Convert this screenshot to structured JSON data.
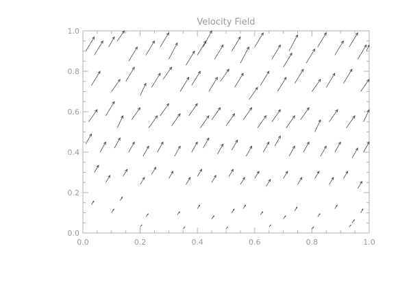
{
  "chart_data": {
    "type": "vector_field",
    "title": "Velocity Field",
    "xlabel": "",
    "ylabel": "",
    "xlim": [
      0.0,
      1.0
    ],
    "ylim": [
      0.0,
      1.0
    ],
    "x_ticks": [
      "0.0",
      "0.2",
      "0.4",
      "0.6",
      "0.8",
      "1.0"
    ],
    "y_ticks": [
      "0.0",
      "0.2",
      "0.4",
      "0.6",
      "0.8",
      "1.0"
    ],
    "grid": false,
    "colors": {
      "axes": "#b0b0b0",
      "text": "#9a9a9a",
      "arrows": "#444444"
    },
    "vectors": [
      {
        "x": 0.01,
        "y": 0.9,
        "u": 0.03,
        "v": 0.07
      },
      {
        "x": 0.04,
        "y": 0.88,
        "u": 0.03,
        "v": 0.07
      },
      {
        "x": 0.09,
        "y": 0.92,
        "u": 0.02,
        "v": 0.05
      },
      {
        "x": 0.12,
        "y": 0.95,
        "u": 0.03,
        "v": 0.06
      },
      {
        "x": 0.16,
        "y": 0.85,
        "u": 0.03,
        "v": 0.07
      },
      {
        "x": 0.22,
        "y": 0.88,
        "u": 0.03,
        "v": 0.07
      },
      {
        "x": 0.27,
        "y": 0.92,
        "u": 0.03,
        "v": 0.07
      },
      {
        "x": 0.3,
        "y": 0.86,
        "u": 0.03,
        "v": 0.08
      },
      {
        "x": 0.36,
        "y": 0.83,
        "u": 0.03,
        "v": 0.07
      },
      {
        "x": 0.4,
        "y": 0.88,
        "u": 0.03,
        "v": 0.07
      },
      {
        "x": 0.42,
        "y": 0.92,
        "u": 0.03,
        "v": 0.08
      },
      {
        "x": 0.46,
        "y": 0.86,
        "u": 0.03,
        "v": 0.07
      },
      {
        "x": 0.52,
        "y": 0.9,
        "u": 0.03,
        "v": 0.07
      },
      {
        "x": 0.55,
        "y": 0.84,
        "u": 0.03,
        "v": 0.08
      },
      {
        "x": 0.6,
        "y": 0.92,
        "u": 0.03,
        "v": 0.07
      },
      {
        "x": 0.66,
        "y": 0.86,
        "u": 0.03,
        "v": 0.07
      },
      {
        "x": 0.7,
        "y": 0.82,
        "u": 0.03,
        "v": 0.07
      },
      {
        "x": 0.72,
        "y": 0.9,
        "u": 0.03,
        "v": 0.08
      },
      {
        "x": 0.78,
        "y": 0.84,
        "u": 0.03,
        "v": 0.07
      },
      {
        "x": 0.82,
        "y": 0.92,
        "u": 0.03,
        "v": 0.07
      },
      {
        "x": 0.88,
        "y": 0.88,
        "u": 0.03,
        "v": 0.07
      },
      {
        "x": 0.93,
        "y": 0.92,
        "u": 0.03,
        "v": 0.07
      },
      {
        "x": 0.96,
        "y": 0.86,
        "u": 0.03,
        "v": 0.07
      },
      {
        "x": 0.99,
        "y": 0.9,
        "u": 0.02,
        "v": 0.06
      },
      {
        "x": 0.03,
        "y": 0.73,
        "u": 0.03,
        "v": 0.07
      },
      {
        "x": 0.1,
        "y": 0.7,
        "u": 0.03,
        "v": 0.06
      },
      {
        "x": 0.15,
        "y": 0.75,
        "u": 0.03,
        "v": 0.07
      },
      {
        "x": 0.2,
        "y": 0.68,
        "u": 0.02,
        "v": 0.06
      },
      {
        "x": 0.24,
        "y": 0.72,
        "u": 0.03,
        "v": 0.07
      },
      {
        "x": 0.28,
        "y": 0.76,
        "u": 0.03,
        "v": 0.06
      },
      {
        "x": 0.34,
        "y": 0.7,
        "u": 0.03,
        "v": 0.07
      },
      {
        "x": 0.38,
        "y": 0.73,
        "u": 0.03,
        "v": 0.07
      },
      {
        "x": 0.44,
        "y": 0.7,
        "u": 0.03,
        "v": 0.07
      },
      {
        "x": 0.48,
        "y": 0.75,
        "u": 0.03,
        "v": 0.06
      },
      {
        "x": 0.53,
        "y": 0.72,
        "u": 0.03,
        "v": 0.07
      },
      {
        "x": 0.58,
        "y": 0.66,
        "u": 0.03,
        "v": 0.06
      },
      {
        "x": 0.62,
        "y": 0.73,
        "u": 0.03,
        "v": 0.07
      },
      {
        "x": 0.68,
        "y": 0.7,
        "u": 0.03,
        "v": 0.07
      },
      {
        "x": 0.74,
        "y": 0.74,
        "u": 0.03,
        "v": 0.07
      },
      {
        "x": 0.8,
        "y": 0.7,
        "u": 0.03,
        "v": 0.06
      },
      {
        "x": 0.85,
        "y": 0.72,
        "u": 0.03,
        "v": 0.07
      },
      {
        "x": 0.91,
        "y": 0.74,
        "u": 0.03,
        "v": 0.07
      },
      {
        "x": 0.97,
        "y": 0.7,
        "u": 0.03,
        "v": 0.06
      },
      {
        "x": 0.02,
        "y": 0.55,
        "u": 0.03,
        "v": 0.06
      },
      {
        "x": 0.08,
        "y": 0.58,
        "u": 0.03,
        "v": 0.07
      },
      {
        "x": 0.12,
        "y": 0.52,
        "u": 0.02,
        "v": 0.06
      },
      {
        "x": 0.17,
        "y": 0.56,
        "u": 0.03,
        "v": 0.06
      },
      {
        "x": 0.23,
        "y": 0.52,
        "u": 0.03,
        "v": 0.06
      },
      {
        "x": 0.27,
        "y": 0.58,
        "u": 0.03,
        "v": 0.06
      },
      {
        "x": 0.31,
        "y": 0.53,
        "u": 0.03,
        "v": 0.06
      },
      {
        "x": 0.37,
        "y": 0.58,
        "u": 0.03,
        "v": 0.06
      },
      {
        "x": 0.41,
        "y": 0.52,
        "u": 0.03,
        "v": 0.06
      },
      {
        "x": 0.45,
        "y": 0.56,
        "u": 0.03,
        "v": 0.06
      },
      {
        "x": 0.5,
        "y": 0.53,
        "u": 0.03,
        "v": 0.06
      },
      {
        "x": 0.56,
        "y": 0.56,
        "u": 0.03,
        "v": 0.06
      },
      {
        "x": 0.61,
        "y": 0.52,
        "u": 0.03,
        "v": 0.06
      },
      {
        "x": 0.66,
        "y": 0.55,
        "u": 0.03,
        "v": 0.06
      },
      {
        "x": 0.71,
        "y": 0.52,
        "u": 0.03,
        "v": 0.06
      },
      {
        "x": 0.76,
        "y": 0.56,
        "u": 0.03,
        "v": 0.06
      },
      {
        "x": 0.81,
        "y": 0.5,
        "u": 0.02,
        "v": 0.06
      },
      {
        "x": 0.86,
        "y": 0.55,
        "u": 0.03,
        "v": 0.06
      },
      {
        "x": 0.92,
        "y": 0.52,
        "u": 0.03,
        "v": 0.06
      },
      {
        "x": 0.98,
        "y": 0.55,
        "u": 0.02,
        "v": 0.06
      },
      {
        "x": 0.01,
        "y": 0.44,
        "u": 0.02,
        "v": 0.05
      },
      {
        "x": 0.06,
        "y": 0.4,
        "u": 0.02,
        "v": 0.05
      },
      {
        "x": 0.11,
        "y": 0.42,
        "u": 0.02,
        "v": 0.05
      },
      {
        "x": 0.16,
        "y": 0.4,
        "u": 0.02,
        "v": 0.05
      },
      {
        "x": 0.21,
        "y": 0.38,
        "u": 0.02,
        "v": 0.05
      },
      {
        "x": 0.26,
        "y": 0.4,
        "u": 0.02,
        "v": 0.05
      },
      {
        "x": 0.32,
        "y": 0.38,
        "u": 0.02,
        "v": 0.05
      },
      {
        "x": 0.38,
        "y": 0.4,
        "u": 0.02,
        "v": 0.05
      },
      {
        "x": 0.42,
        "y": 0.42,
        "u": 0.02,
        "v": 0.05
      },
      {
        "x": 0.47,
        "y": 0.39,
        "u": 0.02,
        "v": 0.05
      },
      {
        "x": 0.52,
        "y": 0.41,
        "u": 0.02,
        "v": 0.05
      },
      {
        "x": 0.57,
        "y": 0.38,
        "u": 0.02,
        "v": 0.05
      },
      {
        "x": 0.63,
        "y": 0.4,
        "u": 0.02,
        "v": 0.05
      },
      {
        "x": 0.67,
        "y": 0.43,
        "u": 0.02,
        "v": 0.05
      },
      {
        "x": 0.72,
        "y": 0.38,
        "u": 0.02,
        "v": 0.05
      },
      {
        "x": 0.77,
        "y": 0.4,
        "u": 0.02,
        "v": 0.05
      },
      {
        "x": 0.83,
        "y": 0.38,
        "u": 0.02,
        "v": 0.05
      },
      {
        "x": 0.88,
        "y": 0.4,
        "u": 0.02,
        "v": 0.05
      },
      {
        "x": 0.94,
        "y": 0.37,
        "u": 0.02,
        "v": 0.05
      },
      {
        "x": 0.98,
        "y": 0.4,
        "u": 0.02,
        "v": 0.05
      },
      {
        "x": 0.04,
        "y": 0.3,
        "u": 0.015,
        "v": 0.035
      },
      {
        "x": 0.08,
        "y": 0.25,
        "u": 0.015,
        "v": 0.035
      },
      {
        "x": 0.14,
        "y": 0.28,
        "u": 0.015,
        "v": 0.035
      },
      {
        "x": 0.2,
        "y": 0.24,
        "u": 0.015,
        "v": 0.035
      },
      {
        "x": 0.24,
        "y": 0.29,
        "u": 0.015,
        "v": 0.035
      },
      {
        "x": 0.3,
        "y": 0.27,
        "u": 0.015,
        "v": 0.035
      },
      {
        "x": 0.36,
        "y": 0.24,
        "u": 0.015,
        "v": 0.035
      },
      {
        "x": 0.4,
        "y": 0.28,
        "u": 0.015,
        "v": 0.035
      },
      {
        "x": 0.45,
        "y": 0.25,
        "u": 0.015,
        "v": 0.035
      },
      {
        "x": 0.51,
        "y": 0.28,
        "u": 0.015,
        "v": 0.035
      },
      {
        "x": 0.55,
        "y": 0.24,
        "u": 0.015,
        "v": 0.035
      },
      {
        "x": 0.6,
        "y": 0.27,
        "u": 0.015,
        "v": 0.035
      },
      {
        "x": 0.64,
        "y": 0.23,
        "u": 0.015,
        "v": 0.035
      },
      {
        "x": 0.7,
        "y": 0.27,
        "u": 0.015,
        "v": 0.035
      },
      {
        "x": 0.75,
        "y": 0.24,
        "u": 0.015,
        "v": 0.035
      },
      {
        "x": 0.81,
        "y": 0.27,
        "u": 0.015,
        "v": 0.035
      },
      {
        "x": 0.86,
        "y": 0.24,
        "u": 0.015,
        "v": 0.035
      },
      {
        "x": 0.91,
        "y": 0.27,
        "u": 0.015,
        "v": 0.035
      },
      {
        "x": 0.96,
        "y": 0.22,
        "u": 0.015,
        "v": 0.035
      },
      {
        "x": 0.03,
        "y": 0.14,
        "u": 0.008,
        "v": 0.018
      },
      {
        "x": 0.1,
        "y": 0.1,
        "u": 0.008,
        "v": 0.018
      },
      {
        "x": 0.13,
        "y": 0.16,
        "u": 0.008,
        "v": 0.018
      },
      {
        "x": 0.22,
        "y": 0.08,
        "u": 0.008,
        "v": 0.015
      },
      {
        "x": 0.33,
        "y": 0.09,
        "u": 0.008,
        "v": 0.015
      },
      {
        "x": 0.4,
        "y": 0.12,
        "u": 0.008,
        "v": 0.018
      },
      {
        "x": 0.45,
        "y": 0.07,
        "u": 0.008,
        "v": 0.015
      },
      {
        "x": 0.52,
        "y": 0.1,
        "u": 0.008,
        "v": 0.018
      },
      {
        "x": 0.56,
        "y": 0.12,
        "u": 0.008,
        "v": 0.018
      },
      {
        "x": 0.62,
        "y": 0.09,
        "u": 0.008,
        "v": 0.015
      },
      {
        "x": 0.7,
        "y": 0.07,
        "u": 0.008,
        "v": 0.015
      },
      {
        "x": 0.74,
        "y": 0.11,
        "u": 0.008,
        "v": 0.018
      },
      {
        "x": 0.82,
        "y": 0.08,
        "u": 0.008,
        "v": 0.015
      },
      {
        "x": 0.88,
        "y": 0.12,
        "u": 0.008,
        "v": 0.018
      },
      {
        "x": 0.94,
        "y": 0.05,
        "u": 0.008,
        "v": 0.015
      },
      {
        "x": 0.97,
        "y": 0.1,
        "u": 0.008,
        "v": 0.018
      },
      {
        "x": 0.2,
        "y": 0.03,
        "u": 0.006,
        "v": 0.01
      },
      {
        "x": 0.35,
        "y": 0.02,
        "u": 0.006,
        "v": 0.01
      },
      {
        "x": 0.5,
        "y": 0.02,
        "u": 0.006,
        "v": 0.01
      },
      {
        "x": 0.65,
        "y": 0.03,
        "u": 0.006,
        "v": 0.01
      },
      {
        "x": 0.8,
        "y": 0.02,
        "u": 0.006,
        "v": 0.01
      },
      {
        "x": 0.93,
        "y": 0.03,
        "u": 0.006,
        "v": 0.01
      }
    ]
  }
}
